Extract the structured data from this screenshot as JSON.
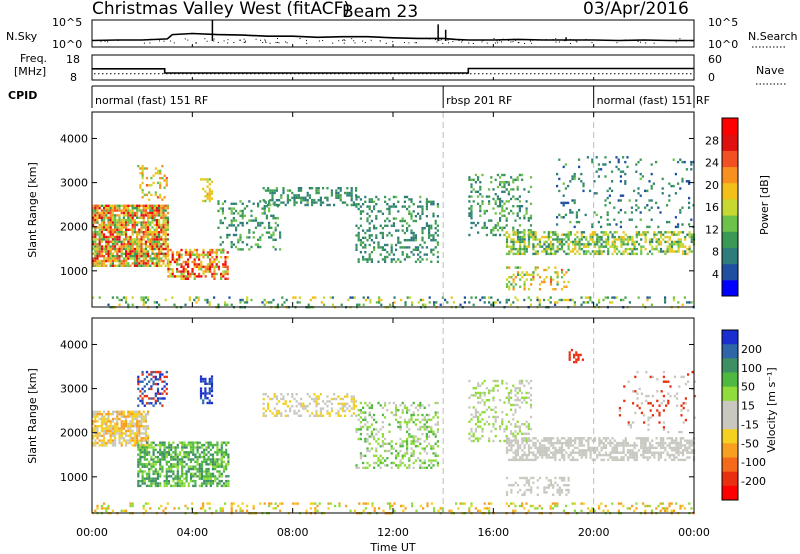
{
  "header": {
    "site": "Christmas Valley West (fitACF)",
    "beam": "Beam 23",
    "date": "03/Apr/2016"
  },
  "panel_labels": {
    "nsky": "N.Sky",
    "nsearch": "N.Search",
    "freq_line1": "Freq.",
    "freq_line2": "[MHz]",
    "nave": "Nave",
    "cpid": "CPID"
  },
  "cpid_segments": [
    {
      "label": "normal (fast) 151 RF",
      "start": 0,
      "end": 14
    },
    {
      "label": "rbsp 201 RF",
      "start": 14,
      "end": 20
    },
    {
      "label": "normal (fast) 151 RF",
      "start": 20,
      "end": 24
    }
  ],
  "x_axis": {
    "label": "Time UT",
    "range": [
      0,
      24
    ],
    "ticks": [
      0,
      4,
      8,
      12,
      16,
      20,
      24
    ],
    "tick_labels": [
      "00:00",
      "04:00",
      "08:00",
      "12:00",
      "16:00",
      "20:00",
      "00:00"
    ]
  },
  "chart_data": [
    {
      "type": "line",
      "name": "noise",
      "ylim_labels": [
        "10^0",
        "10^5"
      ],
      "left_label": "N.Sky",
      "right_label": "N.Search",
      "sky": [
        [
          0,
          1.2
        ],
        [
          1,
          1.3
        ],
        [
          2,
          1.3
        ],
        [
          3,
          1.5
        ],
        [
          3.2,
          2.3
        ],
        [
          4,
          2.5
        ],
        [
          5,
          2.3
        ],
        [
          6,
          2.2
        ],
        [
          7,
          2.0
        ],
        [
          8,
          2.0
        ],
        [
          9,
          1.8
        ],
        [
          10,
          1.9
        ],
        [
          11,
          1.9
        ],
        [
          12,
          1.7
        ],
        [
          13,
          1.6
        ],
        [
          14,
          1.6
        ],
        [
          14.5,
          1.4
        ],
        [
          15,
          1.3
        ],
        [
          16,
          1.3
        ],
        [
          17,
          1.4
        ],
        [
          18,
          1.3
        ],
        [
          19,
          1.3
        ],
        [
          20,
          1.3
        ],
        [
          21,
          1.2
        ],
        [
          22,
          1.3
        ],
        [
          23,
          1.2
        ],
        [
          24,
          1.2
        ]
      ],
      "spikes": [
        [
          4.8,
          5
        ],
        [
          13.8,
          4.2
        ],
        [
          14.1,
          3.2
        ],
        [
          18.9,
          1.8
        ]
      ]
    },
    {
      "type": "line",
      "name": "frequency",
      "left_ticks": [
        "18",
        "8"
      ],
      "right_ticks": [
        "60",
        "0"
      ],
      "freq_segments": [
        [
          0,
          2.9,
          12.5
        ],
        [
          2.9,
          15.0,
          10.8
        ],
        [
          15.0,
          24,
          12.6
        ]
      ],
      "nave_level": 0.45
    },
    {
      "type": "heatmap",
      "name": "power",
      "ylabel": "Slant Range [km]",
      "ylim": [
        180,
        4600
      ],
      "yticks": [
        1000,
        2000,
        3000,
        4000
      ],
      "colorbar_label": "Power [dB]",
      "colorbar_ticks": [
        4,
        8,
        12,
        16,
        20,
        24,
        28
      ],
      "colorbar_range": [
        0,
        32
      ],
      "colors": [
        "#0000ff",
        "#1f4fa0",
        "#2f7d7a",
        "#3a9a55",
        "#6cc24a",
        "#c8d832",
        "#f2c018",
        "#f7901e",
        "#f25022",
        "#e01010",
        "#ff0000"
      ],
      "regions": [
        {
          "t0": 0.0,
          "t1": 3.0,
          "r0": 1100,
          "r1": 2500,
          "v0": 10,
          "v1": 30,
          "density": 0.85
        },
        {
          "t0": 1.8,
          "t1": 3.0,
          "r0": 2600,
          "r1": 3400,
          "v0": 12,
          "v1": 24,
          "density": 0.25
        },
        {
          "t0": 3.0,
          "t1": 5.4,
          "r0": 800,
          "r1": 1500,
          "v0": 12,
          "v1": 30,
          "density": 0.6
        },
        {
          "t0": 4.3,
          "t1": 4.8,
          "r0": 2600,
          "r1": 3100,
          "v0": 14,
          "v1": 22,
          "density": 0.4
        },
        {
          "t0": 5.0,
          "t1": 7.5,
          "r0": 1500,
          "r1": 2600,
          "v0": 6,
          "v1": 14,
          "density": 0.25
        },
        {
          "t0": 6.8,
          "t1": 10.5,
          "r0": 2500,
          "r1": 2900,
          "v0": 6,
          "v1": 12,
          "density": 0.35
        },
        {
          "t0": 10.5,
          "t1": 13.8,
          "r0": 1200,
          "r1": 2700,
          "v0": 6,
          "v1": 12,
          "density": 0.28
        },
        {
          "t0": 15.0,
          "t1": 17.5,
          "r0": 1800,
          "r1": 3200,
          "v0": 6,
          "v1": 14,
          "density": 0.25
        },
        {
          "t0": 16.5,
          "t1": 24.0,
          "r0": 1400,
          "r1": 1900,
          "v0": 8,
          "v1": 20,
          "density": 0.55
        },
        {
          "t0": 16.5,
          "t1": 19.0,
          "r0": 600,
          "r1": 1100,
          "v0": 10,
          "v1": 24,
          "density": 0.3
        },
        {
          "t0": 18.5,
          "t1": 24.0,
          "r0": 2000,
          "r1": 3600,
          "v0": 4,
          "v1": 12,
          "density": 0.1
        },
        {
          "t0": 0.0,
          "t1": 24.0,
          "r0": 180,
          "r1": 420,
          "v0": 4,
          "v1": 20,
          "density": 0.2
        }
      ]
    },
    {
      "type": "heatmap",
      "name": "velocity",
      "ylabel": "Slant Range [km]",
      "ylim": [
        180,
        4600
      ],
      "yticks": [
        1000,
        2000,
        3000,
        4000
      ],
      "colorbar_label": "Velocity [m s⁻¹]",
      "colorbar_ticks": [
        "200",
        "100",
        "50",
        "15",
        "-15",
        "-50",
        "-100",
        "-200"
      ],
      "colors": [
        "#1a2fcf",
        "#2f66a8",
        "#3f8f64",
        "#4fb840",
        "#8fdc3a",
        "#c8c8c0",
        "#c8c8c0",
        "#f4d020",
        "#f7a020",
        "#f56a1a",
        "#e83010",
        "#ff0000"
      ],
      "regions": [
        {
          "t0": 0.0,
          "t1": 2.2,
          "r0": 1700,
          "r1": 2500,
          "c": [
            "#f7a020",
            "#f4d020",
            "#c8c8c0"
          ],
          "density": 0.75
        },
        {
          "t0": 1.8,
          "t1": 5.4,
          "r0": 800,
          "r1": 1800,
          "c": [
            "#4fb840",
            "#8fdc3a",
            "#3f8f64"
          ],
          "density": 0.65
        },
        {
          "t0": 1.8,
          "t1": 3.0,
          "r0": 2600,
          "r1": 3400,
          "c": [
            "#1a2fcf",
            "#e83010",
            "#2f66a8"
          ],
          "density": 0.4
        },
        {
          "t0": 4.3,
          "t1": 4.8,
          "r0": 2700,
          "r1": 3300,
          "c": [
            "#1a2fcf",
            "#2f66a8"
          ],
          "density": 0.5
        },
        {
          "t0": 6.8,
          "t1": 10.5,
          "r0": 2400,
          "r1": 2900,
          "c": [
            "#c8c8c0",
            "#f4d020"
          ],
          "density": 0.4
        },
        {
          "t0": 10.5,
          "t1": 13.8,
          "r0": 1200,
          "r1": 2700,
          "c": [
            "#c8c8c0",
            "#8fdc3a",
            "#4fb840"
          ],
          "density": 0.3
        },
        {
          "t0": 15.0,
          "t1": 17.5,
          "r0": 1800,
          "r1": 3200,
          "c": [
            "#c8c8c0",
            "#8fdc3a"
          ],
          "density": 0.25
        },
        {
          "t0": 16.5,
          "t1": 24.0,
          "r0": 1400,
          "r1": 1900,
          "c": [
            "#c8c8c0"
          ],
          "density": 0.6
        },
        {
          "t0": 16.5,
          "t1": 19.0,
          "r0": 600,
          "r1": 1000,
          "c": [
            "#c8c8c0"
          ],
          "density": 0.3
        },
        {
          "t0": 19.0,
          "t1": 19.6,
          "r0": 3600,
          "r1": 3900,
          "c": [
            "#e83010"
          ],
          "density": 0.4
        },
        {
          "t0": 21.0,
          "t1": 24.0,
          "r0": 2000,
          "r1": 3400,
          "c": [
            "#e83010",
            "#c8c8c0"
          ],
          "density": 0.1
        },
        {
          "t0": 0.0,
          "t1": 24.0,
          "r0": 180,
          "r1": 420,
          "c": [
            "#f4d020",
            "#f7a020",
            "#8fdc3a"
          ],
          "density": 0.22
        }
      ]
    }
  ],
  "colors": {
    "axis": "#000000",
    "dashed_separator": "#bdbdbd",
    "background": "#ffffff"
  }
}
